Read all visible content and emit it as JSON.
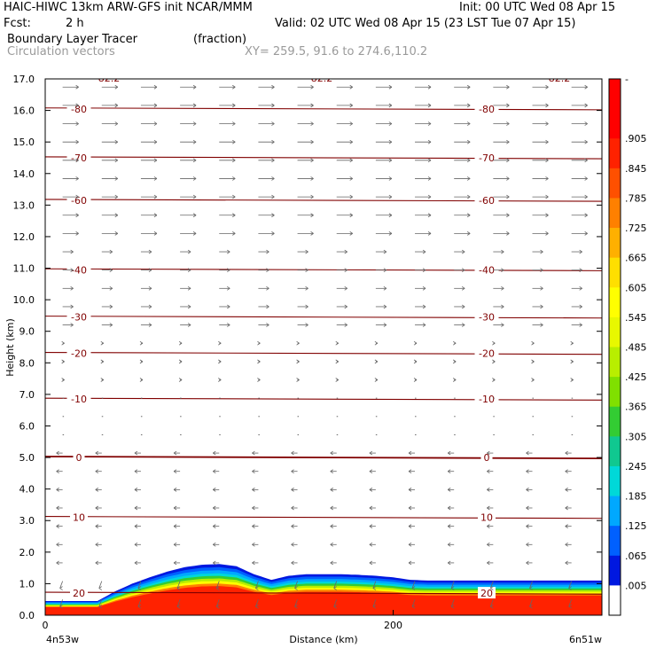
{
  "header": {
    "title": "HAIC-HIWC 13km ARW-GFS init   NCAR/MMM",
    "init": "Init: 00 UTC Wed 08 Apr 15",
    "fcst_label": "Fcst:",
    "fcst_value": "2 h",
    "valid": "Valid: 02 UTC Wed 08 Apr 15 (23 LST Tue 07 Apr 15)",
    "field_name": "Boundary Layer Tracer",
    "field_units": "(fraction)",
    "vectors_label": "Circulation vectors",
    "xy_label": "XY= 259.5, 91.6 to 274.6,110.2"
  },
  "chart_data": {
    "type": "heatmap",
    "ylabel": "Height (km)",
    "xlabel": "Distance (km)",
    "x_left_label": "4n53w",
    "x_right_label": "6n51w",
    "xlim": [
      0,
      320
    ],
    "ylim": [
      0,
      17
    ],
    "yticks": [
      "0.0",
      "1.0",
      "2.0",
      "3.0",
      "4.0",
      "5.0",
      "6.0",
      "7.0",
      "8.0",
      "9.0",
      "10.0",
      "11.0",
      "12.0",
      "13.0",
      "14.0",
      "15.0",
      "16.0",
      "17.0"
    ],
    "xticks": [
      {
        "value": 0,
        "label": "0"
      },
      {
        "value": 200,
        "label": "200"
      }
    ],
    "colorbar": {
      "labels": [
        "-",
        ".905",
        ".845",
        ".785",
        ".725",
        ".665",
        ".605",
        ".545",
        ".485",
        ".425",
        ".365",
        ".305",
        ".245",
        ".185",
        ".125",
        ".065",
        ".005"
      ],
      "colors": [
        "#ff0000",
        "#ff0000",
        "#ff2200",
        "#ff5000",
        "#ff8000",
        "#ffb000",
        "#ffdf00",
        "#ffff00",
        "#e8f800",
        "#b8ee00",
        "#80e000",
        "#33cc33",
        "#10c890",
        "#00d8d8",
        "#00a8ff",
        "#0060ff",
        "#0018e0",
        "#ffffff"
      ]
    },
    "temperature_contours": [
      {
        "label": "-80",
        "y": 16.05
      },
      {
        "label": "-70",
        "y": 14.5
      },
      {
        "label": "-60",
        "y": 13.15
      },
      {
        "label": "-40",
        "y": 10.95
      },
      {
        "label": "-30",
        "y": 9.45
      },
      {
        "label": "-20",
        "y": 8.3
      },
      {
        "label": "-10",
        "y": 6.85
      },
      {
        "label": "0",
        "y": 5.0
      },
      {
        "label": "10",
        "y": 3.1
      },
      {
        "label": "20",
        "y": 0.7
      }
    ],
    "top_labels": [
      "-82.2",
      "-82.2",
      "-82.2"
    ],
    "tracer_top_profile": {
      "x_km": [
        0,
        10,
        20,
        30,
        40,
        50,
        60,
        70,
        80,
        90,
        100,
        110,
        120,
        130,
        140,
        150,
        160,
        170,
        180,
        190,
        200,
        210,
        220,
        230,
        240,
        250,
        260,
        270,
        280,
        290,
        300,
        310,
        320
      ],
      "z_km": [
        0.45,
        0.45,
        0.45,
        0.45,
        0.75,
        1.0,
        1.2,
        1.38,
        1.52,
        1.6,
        1.62,
        1.55,
        1.3,
        1.12,
        1.25,
        1.3,
        1.3,
        1.3,
        1.28,
        1.25,
        1.2,
        1.12,
        1.1,
        1.1,
        1.1,
        1.1,
        1.1,
        1.1,
        1.1,
        1.1,
        1.1,
        1.1,
        1.1
      ]
    }
  }
}
